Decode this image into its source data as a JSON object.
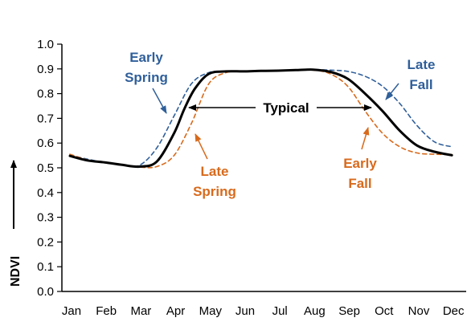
{
  "chart_data": {
    "type": "line",
    "title": "",
    "xlabel": "",
    "ylabel": "NDVI",
    "ylim": [
      0.0,
      1.0
    ],
    "yticks": [
      "0.0",
      "0.1",
      "0.2",
      "0.3",
      "0.4",
      "0.5",
      "0.6",
      "0.7",
      "0.8",
      "0.9",
      "1.0"
    ],
    "categories": [
      "Jan",
      "Feb",
      "Mar",
      "Apr",
      "May",
      "Jun",
      "Jul",
      "Aug",
      "Sep",
      "Oct",
      "Nov",
      "Dec"
    ],
    "grid": false,
    "series": [
      {
        "key": "typical",
        "color": "#000000",
        "style": "solid",
        "x": [
          0,
          0.5,
          1,
          1.5,
          2,
          2.5,
          3,
          3.3,
          3.6,
          4,
          4.5,
          5,
          5.5,
          6,
          6.5,
          7,
          7.5,
          8,
          8.5,
          9,
          9.5,
          10,
          10.5,
          11
        ],
        "values": [
          0.548,
          0.53,
          0.522,
          0.512,
          0.505,
          0.525,
          0.64,
          0.74,
          0.82,
          0.88,
          0.89,
          0.89,
          0.892,
          0.893,
          0.895,
          0.897,
          0.888,
          0.86,
          0.8,
          0.73,
          0.65,
          0.59,
          0.565,
          0.551
        ]
      },
      {
        "key": "early_spring_late_fall",
        "color": "#2f5f9a",
        "style": "dashed",
        "x": [
          0,
          0.5,
          1,
          1.5,
          2,
          2.5,
          3,
          3.5,
          4,
          4.5,
          5,
          5.5,
          6,
          6.5,
          7,
          7.5,
          8,
          8.5,
          9,
          9.5,
          10,
          10.5,
          11
        ],
        "values": [
          0.552,
          0.535,
          0.522,
          0.512,
          0.51,
          0.58,
          0.71,
          0.84,
          0.885,
          0.89,
          0.89,
          0.892,
          0.894,
          0.895,
          0.897,
          0.895,
          0.89,
          0.87,
          0.83,
          0.76,
          0.67,
          0.605,
          0.585
        ]
      },
      {
        "key": "late_spring_early_fall",
        "color": "#d86a1c",
        "style": "dashed",
        "x": [
          0,
          0.5,
          1,
          1.5,
          2,
          2.5,
          3,
          3.5,
          4,
          4.5,
          5,
          5.5,
          6,
          6.5,
          7,
          7.5,
          8,
          8.5,
          9,
          9.5,
          10,
          10.5,
          11
        ],
        "values": [
          0.555,
          0.532,
          0.522,
          0.512,
          0.503,
          0.505,
          0.55,
          0.68,
          0.84,
          0.885,
          0.89,
          0.892,
          0.893,
          0.895,
          0.895,
          0.88,
          0.83,
          0.73,
          0.64,
          0.585,
          0.56,
          0.555,
          0.554
        ]
      }
    ],
    "annotations": {
      "early_spring": [
        "Early",
        "Spring"
      ],
      "late_spring": [
        "Late",
        "Spring"
      ],
      "typical": "Typical",
      "early_fall": [
        "Early",
        "Fall"
      ],
      "late_fall": [
        "Late",
        "Fall"
      ]
    }
  }
}
